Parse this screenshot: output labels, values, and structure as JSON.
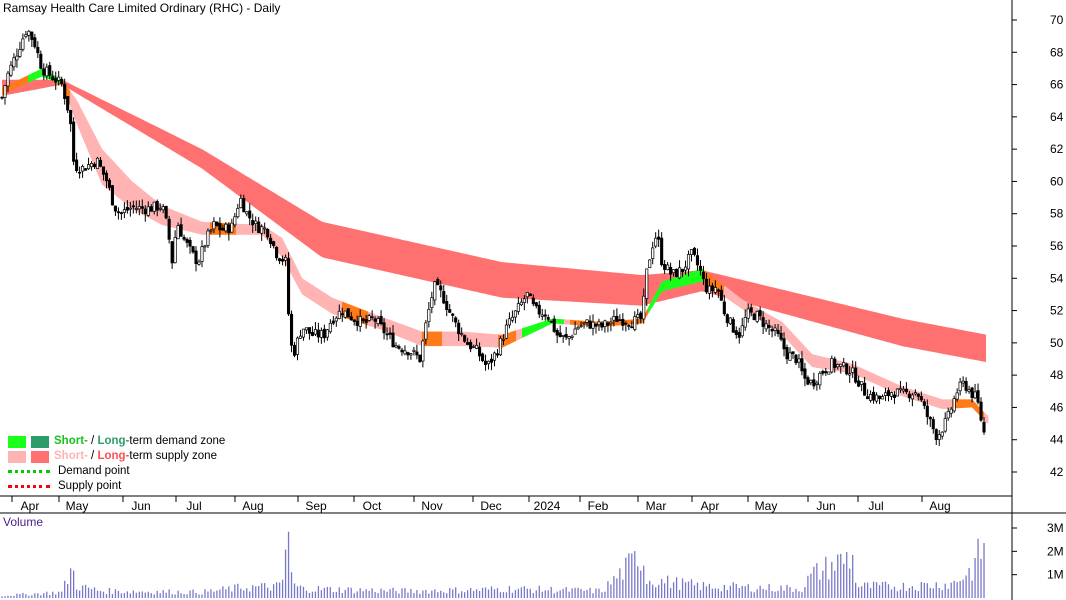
{
  "chart_data": {
    "type": "candlestick",
    "title": "Ramsay Health Care Limited Ordinary (RHC) - Daily",
    "volume_label": "Volume",
    "price_axis": {
      "ticks": [
        42,
        44,
        46,
        48,
        50,
        52,
        54,
        56,
        58,
        60,
        62,
        64,
        66,
        68,
        70
      ],
      "range": [
        40.6,
        71.3
      ]
    },
    "volume_axis": {
      "ticks": [
        "1M",
        "2M",
        "3M"
      ],
      "tick_values": [
        1,
        2,
        3
      ],
      "range": [
        0,
        3.4
      ]
    },
    "month_labels": [
      "Apr",
      "May",
      "Jun",
      "Jul",
      "Aug",
      "Sep",
      "Oct",
      "Nov",
      "Dec",
      "2024",
      "Feb",
      "Mar",
      "Apr",
      "May",
      "Jun",
      "Jul",
      "Aug"
    ],
    "legend": {
      "demand_zone": {
        "a": "Short-",
        "sep": " / ",
        "b": "Long-",
        "rest": "term demand zone"
      },
      "supply_zone": {
        "a": "Short-",
        "sep": " / ",
        "b": "Long-",
        "rest": "term supply zone"
      },
      "demand_point": "Demand point",
      "supply_point": "Supply point"
    },
    "colors": {
      "short_demand": "#19ff19",
      "long_demand": "#2e9b6a",
      "short_supply": "#ffb3b3",
      "long_supply": "#ff7070",
      "short_zone_orange": "#ff7a1a",
      "demand_point": "#00cc00",
      "supply_point": "#ff0000",
      "volume_bar": "#7878c8",
      "candle": "#000000"
    },
    "price_path": [
      [
        0,
        65.2
      ],
      [
        5,
        66.5
      ],
      [
        15,
        68
      ],
      [
        25,
        69.5
      ],
      [
        33,
        68.5
      ],
      [
        40,
        67
      ],
      [
        50,
        66.5
      ],
      [
        60,
        66
      ],
      [
        68,
        64
      ],
      [
        72,
        61
      ],
      [
        80,
        60.8
      ],
      [
        95,
        61.3
      ],
      [
        105,
        60
      ],
      [
        112,
        58.5
      ],
      [
        118,
        58
      ],
      [
        130,
        58.4
      ],
      [
        145,
        58.3
      ],
      [
        160,
        58.5
      ],
      [
        166,
        57
      ],
      [
        170,
        55
      ],
      [
        175,
        57.5
      ],
      [
        182,
        56.4
      ],
      [
        190,
        55.5
      ],
      [
        196,
        55
      ],
      [
        205,
        56.5
      ],
      [
        212,
        57.3
      ],
      [
        220,
        57
      ],
      [
        230,
        57.2
      ],
      [
        238,
        59
      ],
      [
        245,
        58
      ],
      [
        255,
        57.2
      ],
      [
        265,
        57
      ],
      [
        275,
        55.5
      ],
      [
        284,
        55
      ],
      [
        288,
        50
      ],
      [
        292,
        49.4
      ],
      [
        300,
        51
      ],
      [
        310,
        50.5
      ],
      [
        322,
        50.5
      ],
      [
        330,
        51.5
      ],
      [
        340,
        52
      ],
      [
        352,
        51.5
      ],
      [
        362,
        51.2
      ],
      [
        372,
        51.5
      ],
      [
        385,
        50.5
      ],
      [
        395,
        49.8
      ],
      [
        408,
        49.5
      ],
      [
        418,
        49
      ],
      [
        425,
        51.5
      ],
      [
        432,
        53.5
      ],
      [
        440,
        53
      ],
      [
        447,
        52
      ],
      [
        455,
        51
      ],
      [
        465,
        50
      ],
      [
        475,
        49.5
      ],
      [
        485,
        48.5
      ],
      [
        495,
        49.5
      ],
      [
        505,
        51
      ],
      [
        515,
        52
      ],
      [
        525,
        53
      ],
      [
        533,
        52
      ],
      [
        545,
        51.8
      ],
      [
        555,
        50.5
      ],
      [
        565,
        50.2
      ],
      [
        575,
        51
      ],
      [
        585,
        51.2
      ],
      [
        600,
        51
      ],
      [
        615,
        51.5
      ],
      [
        630,
        51.3
      ],
      [
        640,
        51.5
      ],
      [
        645,
        54.5
      ],
      [
        650,
        56
      ],
      [
        655,
        56.8
      ],
      [
        660,
        55
      ],
      [
        670,
        54.2
      ],
      [
        680,
        54.5
      ],
      [
        690,
        55.5
      ],
      [
        698,
        54.5
      ],
      [
        703,
        53.5
      ],
      [
        708,
        53.2
      ],
      [
        715,
        53.5
      ],
      [
        722,
        52
      ],
      [
        730,
        51
      ],
      [
        738,
        50.5
      ],
      [
        745,
        51.8
      ],
      [
        755,
        51.7
      ],
      [
        765,
        51
      ],
      [
        775,
        50.5
      ],
      [
        785,
        49.3
      ],
      [
        795,
        49
      ],
      [
        802,
        47.8
      ],
      [
        810,
        47.5
      ],
      [
        820,
        48.2
      ],
      [
        830,
        48.7
      ],
      [
        840,
        48.5
      ],
      [
        848,
        48.3
      ],
      [
        855,
        47.8
      ],
      [
        862,
        47
      ],
      [
        870,
        46.7
      ],
      [
        880,
        46.5
      ],
      [
        890,
        47
      ],
      [
        900,
        46.8
      ],
      [
        915,
        47
      ],
      [
        925,
        45.5
      ],
      [
        935,
        44.2
      ],
      [
        945,
        45.2
      ],
      [
        955,
        47
      ],
      [
        962,
        47.5
      ],
      [
        968,
        47
      ],
      [
        975,
        46.5
      ],
      [
        980,
        45
      ],
      [
        985,
        43.6
      ],
      [
        987,
        41.5
      ]
    ],
    "long_band_upper": [
      [
        0,
        66.3
      ],
      [
        60,
        66.3
      ],
      [
        200,
        62
      ],
      [
        320,
        57.5
      ],
      [
        500,
        55
      ],
      [
        640,
        54.2
      ],
      [
        700,
        54.5
      ],
      [
        800,
        53
      ],
      [
        900,
        51.5
      ],
      [
        985,
        50.5
      ]
    ],
    "long_band_lower": [
      [
        0,
        65.3
      ],
      [
        60,
        66
      ],
      [
        200,
        60.8
      ],
      [
        320,
        55.3
      ],
      [
        500,
        52.8
      ],
      [
        640,
        52.3
      ],
      [
        700,
        53.2
      ],
      [
        800,
        51.5
      ],
      [
        900,
        49.8
      ],
      [
        985,
        48.8
      ]
    ],
    "short_band_upper": [
      [
        0,
        65.8
      ],
      [
        40,
        67
      ],
      [
        60,
        66.3
      ],
      [
        75,
        65
      ],
      [
        100,
        62
      ],
      [
        130,
        60
      ],
      [
        160,
        58.5
      ],
      [
        200,
        57.5
      ],
      [
        260,
        57.3
      ],
      [
        280,
        56.5
      ],
      [
        300,
        54
      ],
      [
        330,
        52.8
      ],
      [
        380,
        51.6
      ],
      [
        420,
        50.7
      ],
      [
        460,
        50.7
      ],
      [
        500,
        50.5
      ],
      [
        550,
        51.5
      ],
      [
        600,
        51.3
      ],
      [
        640,
        51.5
      ],
      [
        660,
        53.8
      ],
      [
        700,
        54.6
      ],
      [
        740,
        52.7
      ],
      [
        780,
        51.3
      ],
      [
        810,
        49.3
      ],
      [
        850,
        48.7
      ],
      [
        900,
        47.3
      ],
      [
        940,
        46.5
      ],
      [
        970,
        46.5
      ],
      [
        985,
        45.5
      ]
    ],
    "short_band_lower": [
      [
        0,
        65.4
      ],
      [
        40,
        66.5
      ],
      [
        60,
        66
      ],
      [
        75,
        63.5
      ],
      [
        100,
        59.8
      ],
      [
        130,
        58.3
      ],
      [
        160,
        57.3
      ],
      [
        200,
        56.7
      ],
      [
        260,
        56.7
      ],
      [
        280,
        55.3
      ],
      [
        300,
        53
      ],
      [
        330,
        51.8
      ],
      [
        380,
        50.8
      ],
      [
        420,
        49.8
      ],
      [
        460,
        49.8
      ],
      [
        500,
        49.7
      ],
      [
        550,
        51.2
      ],
      [
        600,
        51
      ],
      [
        640,
        51.2
      ],
      [
        660,
        53.2
      ],
      [
        700,
        53.8
      ],
      [
        740,
        52.1
      ],
      [
        780,
        50.5
      ],
      [
        810,
        48.5
      ],
      [
        850,
        48.1
      ],
      [
        900,
        46.7
      ],
      [
        940,
        45.9
      ],
      [
        970,
        46
      ],
      [
        985,
        45
      ]
    ],
    "green_segments": [
      [
        25,
        58
      ],
      [
        520,
        560
      ],
      [
        645,
        700
      ]
    ],
    "orange_segments": [
      [
        0,
        24
      ],
      [
        58,
        66
      ],
      [
        208,
        232
      ],
      [
        340,
        365
      ],
      [
        420,
        438
      ],
      [
        495,
        512
      ],
      [
        568,
        640
      ],
      [
        640,
        720
      ],
      [
        950,
        980
      ]
    ],
    "volume_path": [
      [
        0,
        0.1
      ],
      [
        60,
        0.25
      ],
      [
        70,
        1.3
      ],
      [
        75,
        0.5
      ],
      [
        100,
        0.3
      ],
      [
        200,
        0.25
      ],
      [
        240,
        0.45
      ],
      [
        280,
        0.5
      ],
      [
        286,
        3.1
      ],
      [
        290,
        0.6
      ],
      [
        300,
        0.4
      ],
      [
        400,
        0.3
      ],
      [
        480,
        0.35
      ],
      [
        500,
        0.4
      ],
      [
        600,
        0.3
      ],
      [
        640,
        1.9
      ],
      [
        645,
        0.8
      ],
      [
        700,
        0.5
      ],
      [
        800,
        0.4
      ],
      [
        810,
        1.0
      ],
      [
        850,
        1.8
      ],
      [
        855,
        0.5
      ],
      [
        900,
        0.5
      ],
      [
        950,
        0.6
      ],
      [
        970,
        1.2
      ],
      [
        985,
        2.6
      ]
    ]
  }
}
